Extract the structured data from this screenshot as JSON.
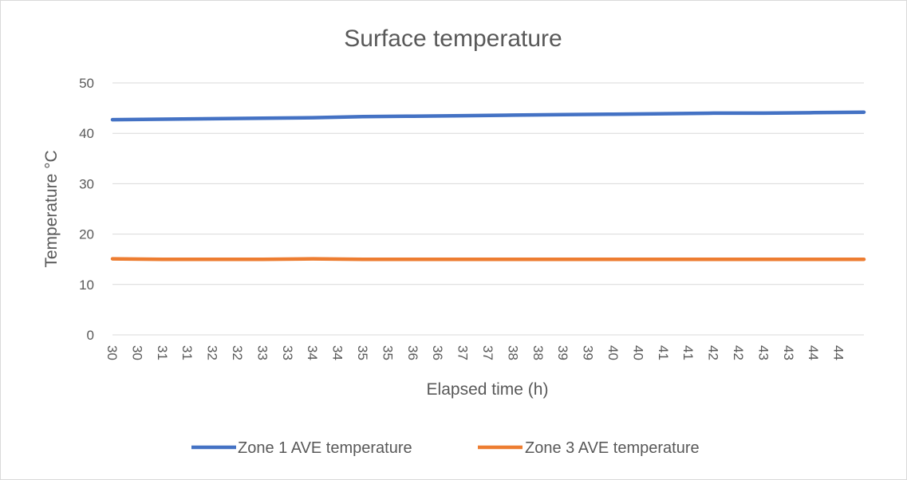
{
  "chart_data": {
    "type": "line",
    "title": "Surface temperature",
    "xlabel": "Elapsed time (h)",
    "ylabel": "Temperature °C",
    "x_tick_labels": [
      "30",
      "30",
      "31",
      "31",
      "32",
      "32",
      "33",
      "33",
      "34",
      "34",
      "35",
      "35",
      "36",
      "36",
      "37",
      "37",
      "38",
      "38",
      "39",
      "39",
      "40",
      "40",
      "41",
      "41",
      "42",
      "42",
      "43",
      "43",
      "44",
      "44"
    ],
    "xlim": [
      30,
      45
    ],
    "ylim": [
      0,
      50
    ],
    "yticks": [
      0,
      10,
      20,
      30,
      40,
      50
    ],
    "grid": true,
    "legend_position": "bottom",
    "x": [
      30,
      31,
      32,
      33,
      34,
      35,
      36,
      37,
      38,
      39,
      40,
      41,
      42,
      43,
      44,
      45
    ],
    "series": [
      {
        "name": "Zone 1 AVE temperature",
        "color": "#4472C4",
        "values": [
          42.7,
          42.8,
          42.9,
          43.0,
          43.1,
          43.3,
          43.4,
          43.5,
          43.6,
          43.7,
          43.8,
          43.9,
          44.0,
          44.0,
          44.1,
          44.2
        ]
      },
      {
        "name": "Zone 3 AVE temperature",
        "color": "#ED7D31",
        "values": [
          15.1,
          15.0,
          15.0,
          15.0,
          15.1,
          15.0,
          15.0,
          15.0,
          15.0,
          15.0,
          15.0,
          15.0,
          15.0,
          15.0,
          15.0,
          15.0
        ]
      }
    ]
  }
}
